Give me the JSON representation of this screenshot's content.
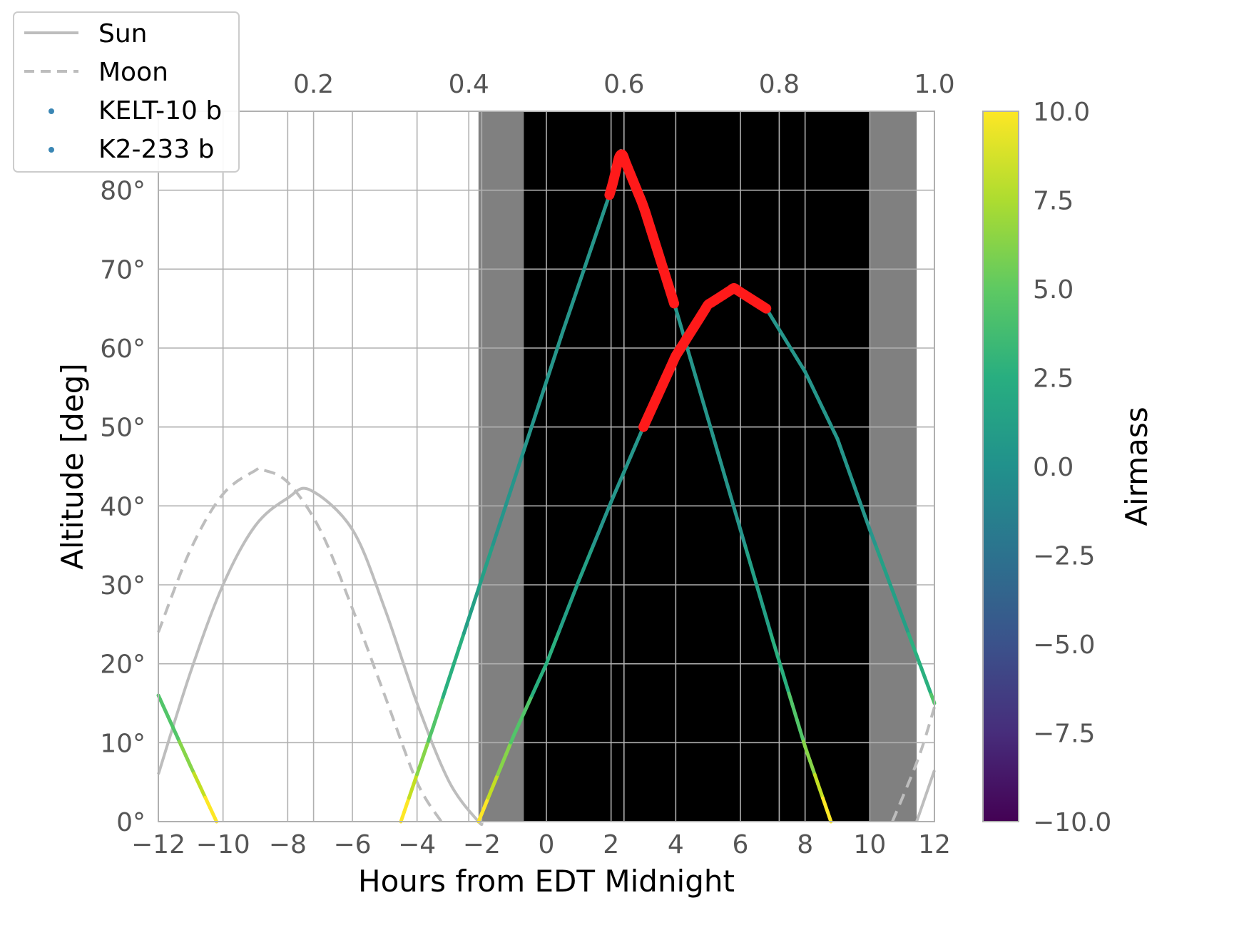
{
  "chart_data": {
    "type": "line",
    "xlabel": "Hours from EDT Midnight",
    "ylabel": "Altitude [deg]",
    "xlim": [
      -12,
      12
    ],
    "ylim": [
      0,
      90
    ],
    "x_ticks": [
      -12,
      -10,
      -8,
      -6,
      -4,
      -2,
      0,
      2,
      4,
      6,
      8,
      10,
      12
    ],
    "x_tick_labels": [
      "−12",
      "−10",
      "−8",
      "−6",
      "−4",
      "−2",
      "0",
      "2",
      "4",
      "6",
      "8",
      "10",
      "12"
    ],
    "y_ticks": [
      0,
      10,
      20,
      30,
      40,
      50,
      60,
      70,
      80
    ],
    "y_tick_labels": [
      "0°",
      "10°",
      "20°",
      "30°",
      "40°",
      "50°",
      "60°",
      "70°",
      "80°"
    ],
    "top_axis": {
      "ticks": [
        0.2,
        0.4,
        0.6,
        0.8,
        1.0
      ],
      "tick_labels": [
        "0.2",
        "0.4",
        "0.6",
        "0.8",
        "1.0"
      ]
    },
    "grid": true,
    "twilight_bands": [
      {
        "x0": -2.1,
        "x1": -0.7,
        "color": "#808080"
      },
      {
        "x0": -0.7,
        "x1": 10.0,
        "color": "#000000"
      },
      {
        "x0": 10.0,
        "x1": 11.45,
        "color": "#808080"
      }
    ],
    "series": [
      {
        "name": "Sun",
        "style": "solid",
        "color": "#bdbdbd",
        "x": [
          -12,
          -11,
          -10,
          -9,
          -8,
          -7.3,
          -6,
          -5,
          -4,
          -3,
          -2.1,
          -2
        ],
        "y": [
          6,
          19,
          30,
          37.5,
          41,
          42,
          37,
          27,
          15,
          5,
          0,
          0
        ],
        "x2": [
          11.45,
          12
        ],
        "y2": [
          0,
          6.5
        ]
      },
      {
        "name": "Moon",
        "style": "dashed",
        "color": "#bdbdbd",
        "x": [
          -12,
          -11,
          -10,
          -9,
          -8.8,
          -8,
          -7,
          -6,
          -5,
          -4,
          -3.25
        ],
        "y": [
          24,
          34.5,
          41.5,
          44.5,
          44.6,
          43,
          37,
          27,
          16,
          5,
          0
        ],
        "x2": [
          10.7,
          11.5,
          12
        ],
        "y2": [
          0,
          8,
          14.5
        ]
      },
      {
        "name": "KELT-10 b",
        "style": "airmass",
        "x": [
          -4.5,
          -3.5,
          -2.5,
          -1.5,
          -0.5,
          0.5,
          1.5,
          2,
          2.3,
          3,
          3.5,
          4,
          5,
          6,
          7,
          8,
          8.8
        ],
        "y": [
          0,
          12,
          24.5,
          37,
          49.5,
          62,
          74,
          80,
          85,
          78,
          71.5,
          65,
          51,
          37,
          23,
          9.5,
          0
        ],
        "highlight": {
          "x0": 1.95,
          "x1": 4.0,
          "color": "#ff1a1a"
        }
      },
      {
        "name": "K2-233 b",
        "style": "airmass",
        "x": [
          -12,
          -11,
          -10.2,
          -2.1,
          -1,
          0,
          1,
          2,
          3,
          4,
          5,
          5.8,
          6.8,
          8,
          9,
          10,
          11,
          12
        ],
        "y": [
          16,
          7,
          0,
          0,
          11,
          20,
          30.5,
          40.5,
          50,
          59,
          65.5,
          67.6,
          65,
          57,
          48.5,
          37,
          26,
          15
        ],
        "highlight": {
          "x0": 3.0,
          "x1": 6.8,
          "color": "#ff1a1a"
        }
      }
    ],
    "colorbar": {
      "label": "Airmass",
      "ticks": [
        10.0,
        7.5,
        5.0,
        2.5,
        0.0,
        -2.5,
        -5.0,
        -7.5,
        -10.0
      ],
      "tick_labels": [
        "10.0",
        "7.5",
        "5.0",
        "2.5",
        "0.0",
        "−2.5",
        "−5.0",
        "−7.5",
        "−10.0"
      ],
      "range": [
        -10,
        10
      ],
      "colormap": "viridis"
    },
    "legend": {
      "placement": "top-left",
      "entries": [
        "Sun",
        "Moon",
        "KELT-10 b",
        "K2-233 b"
      ]
    }
  }
}
